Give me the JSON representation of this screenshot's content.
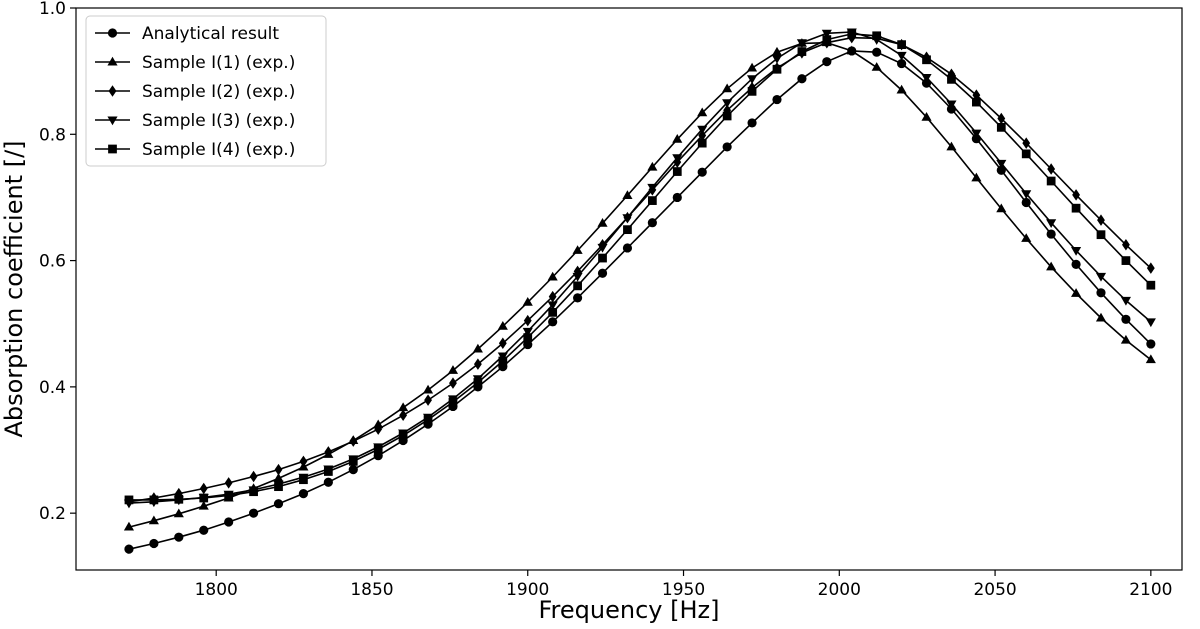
{
  "chart_data": {
    "type": "line",
    "xlabel": "Frequency [Hz]",
    "ylabel": "Absorption coefficient [/]",
    "xlim": [
      1755,
      2110
    ],
    "ylim": [
      0.11,
      1.0
    ],
    "xticks": [
      1800,
      1850,
      1900,
      1950,
      2000,
      2050,
      2100
    ],
    "yticks": [
      0.2,
      0.4,
      0.6,
      0.8,
      1.0
    ],
    "xtick_labels": [
      "1800",
      "1850",
      "1900",
      "1950",
      "2000",
      "2050",
      "2100"
    ],
    "ytick_labels": [
      "0.2",
      "0.4",
      "0.6",
      "0.8",
      "1.0"
    ],
    "grid": false,
    "legend_position": "top-left",
    "x": [
      1772,
      1780,
      1788,
      1796,
      1804,
      1812,
      1820,
      1828,
      1836,
      1844,
      1852,
      1860,
      1868,
      1876,
      1884,
      1892,
      1900,
      1908,
      1916,
      1924,
      1932,
      1940,
      1948,
      1956,
      1964,
      1972,
      1980,
      1988,
      1996,
      2004,
      2012,
      2020,
      2028,
      2036,
      2044,
      2052,
      2060,
      2068,
      2076,
      2084,
      2092,
      2100
    ],
    "series": [
      {
        "name": "Analytical result",
        "marker": "circle",
        "values": [
          0.143,
          0.152,
          0.162,
          0.173,
          0.186,
          0.2,
          0.215,
          0.231,
          0.249,
          0.269,
          0.291,
          0.315,
          0.341,
          0.369,
          0.4,
          0.432,
          0.467,
          0.503,
          0.541,
          0.58,
          0.62,
          0.66,
          0.7,
          0.74,
          0.78,
          0.818,
          0.855,
          0.888,
          0.915,
          0.932,
          0.93,
          0.912,
          0.881,
          0.84,
          0.793,
          0.743,
          0.692,
          0.642,
          0.594,
          0.549,
          0.507,
          0.468
        ]
      },
      {
        "name": "Sample I(1) (exp.)",
        "marker": "triangle-up",
        "values": [
          0.178,
          0.188,
          0.199,
          0.211,
          0.224,
          0.239,
          0.255,
          0.273,
          0.293,
          0.315,
          0.34,
          0.367,
          0.395,
          0.426,
          0.46,
          0.496,
          0.534,
          0.574,
          0.616,
          0.659,
          0.703,
          0.748,
          0.792,
          0.834,
          0.872,
          0.905,
          0.93,
          0.944,
          0.945,
          0.932,
          0.906,
          0.87,
          0.827,
          0.78,
          0.731,
          0.682,
          0.635,
          0.59,
          0.548,
          0.509,
          0.474,
          0.443
        ]
      },
      {
        "name": "Sample I(2) (exp.)",
        "marker": "diamond",
        "values": [
          0.218,
          0.224,
          0.231,
          0.239,
          0.248,
          0.258,
          0.269,
          0.282,
          0.297,
          0.314,
          0.333,
          0.355,
          0.379,
          0.406,
          0.436,
          0.469,
          0.505,
          0.543,
          0.583,
          0.625,
          0.668,
          0.712,
          0.756,
          0.798,
          0.838,
          0.874,
          0.905,
          0.929,
          0.945,
          0.953,
          0.952,
          0.942,
          0.922,
          0.895,
          0.862,
          0.825,
          0.786,
          0.745,
          0.704,
          0.664,
          0.625,
          0.588
        ]
      },
      {
        "name": "Sample I(3) (exp.)",
        "marker": "triangle-down",
        "values": [
          0.216,
          0.218,
          0.221,
          0.225,
          0.23,
          0.237,
          0.246,
          0.257,
          0.27,
          0.286,
          0.305,
          0.327,
          0.352,
          0.381,
          0.413,
          0.449,
          0.488,
          0.53,
          0.575,
          0.621,
          0.668,
          0.716,
          0.763,
          0.808,
          0.85,
          0.888,
          0.92,
          0.945,
          0.96,
          0.962,
          0.95,
          0.925,
          0.89,
          0.848,
          0.802,
          0.754,
          0.706,
          0.66,
          0.616,
          0.575,
          0.537,
          0.503
        ]
      },
      {
        "name": "Sample I(4) (exp.)",
        "marker": "square",
        "values": [
          0.221,
          0.221,
          0.222,
          0.224,
          0.228,
          0.234,
          0.242,
          0.253,
          0.266,
          0.282,
          0.301,
          0.323,
          0.348,
          0.376,
          0.407,
          0.441,
          0.478,
          0.518,
          0.56,
          0.604,
          0.649,
          0.695,
          0.741,
          0.786,
          0.829,
          0.868,
          0.903,
          0.931,
          0.95,
          0.959,
          0.956,
          0.942,
          0.918,
          0.887,
          0.851,
          0.811,
          0.769,
          0.726,
          0.683,
          0.641,
          0.6,
          0.561
        ]
      }
    ]
  }
}
